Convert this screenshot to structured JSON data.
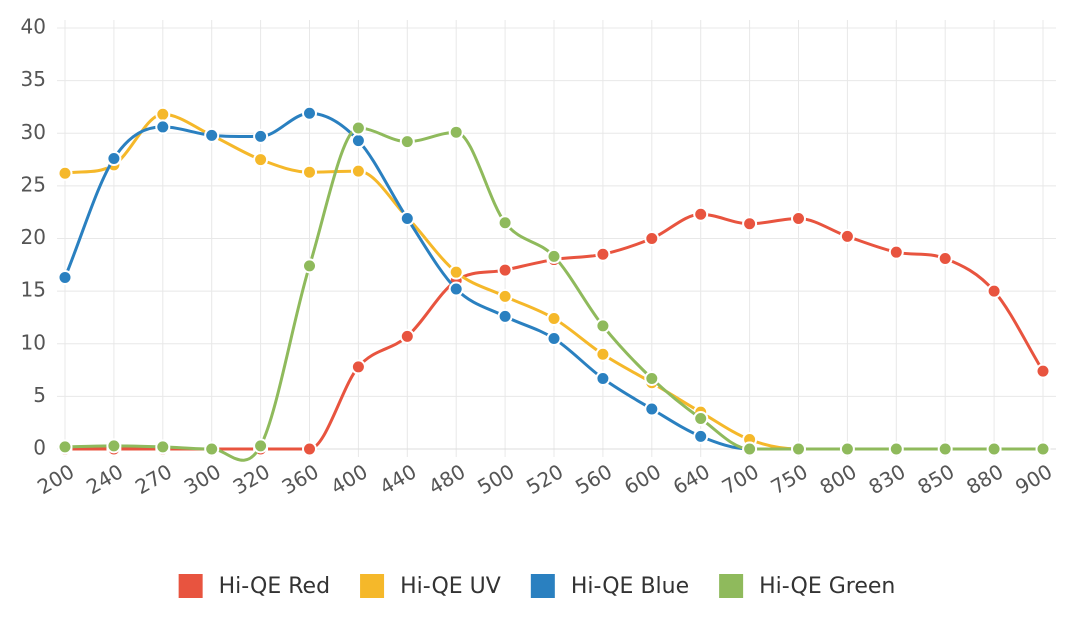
{
  "chart_data": {
    "type": "line",
    "categories": [
      200,
      240,
      270,
      300,
      320,
      360,
      400,
      440,
      480,
      500,
      520,
      560,
      600,
      640,
      700,
      750,
      800,
      830,
      850,
      880,
      900
    ],
    "ylim": [
      0,
      40
    ],
    "yticks": [
      0,
      5,
      10,
      15,
      20,
      25,
      30,
      35,
      40
    ],
    "grid": true,
    "series": [
      {
        "name": "Hi-QE Red",
        "color": "#e8543f",
        "values": [
          0,
          0,
          0,
          0,
          0,
          0,
          7.8,
          10.7,
          16,
          17,
          18,
          18.5,
          20,
          22.3,
          21.4,
          21.9,
          20.2,
          18.7,
          18.1,
          15,
          7.4
        ]
      },
      {
        "name": "Hi-QE UV",
        "color": "#f5b82a",
        "values": [
          26.2,
          27,
          31.8,
          29.8,
          27.5,
          26.3,
          26.4,
          22,
          16.8,
          14.5,
          12.4,
          9,
          6.3,
          3.5,
          0.9,
          0,
          0,
          0,
          0,
          0,
          0
        ]
      },
      {
        "name": "Hi-QE Blue",
        "color": "#2a80c0",
        "values": [
          16.3,
          27.6,
          30.6,
          29.8,
          29.7,
          31.9,
          29.3,
          21.9,
          15.2,
          12.6,
          10.5,
          6.7,
          3.8,
          1.2,
          0,
          0,
          0,
          0,
          0,
          0,
          0
        ]
      },
      {
        "name": "Hi-QE Green",
        "color": "#8fba5c",
        "values": [
          0.2,
          0.3,
          0.2,
          0,
          0.3,
          17.4,
          30.5,
          29.2,
          30.1,
          21.5,
          18.3,
          11.7,
          6.7,
          2.9,
          0,
          0,
          0,
          0,
          0,
          0,
          0
        ]
      }
    ]
  }
}
